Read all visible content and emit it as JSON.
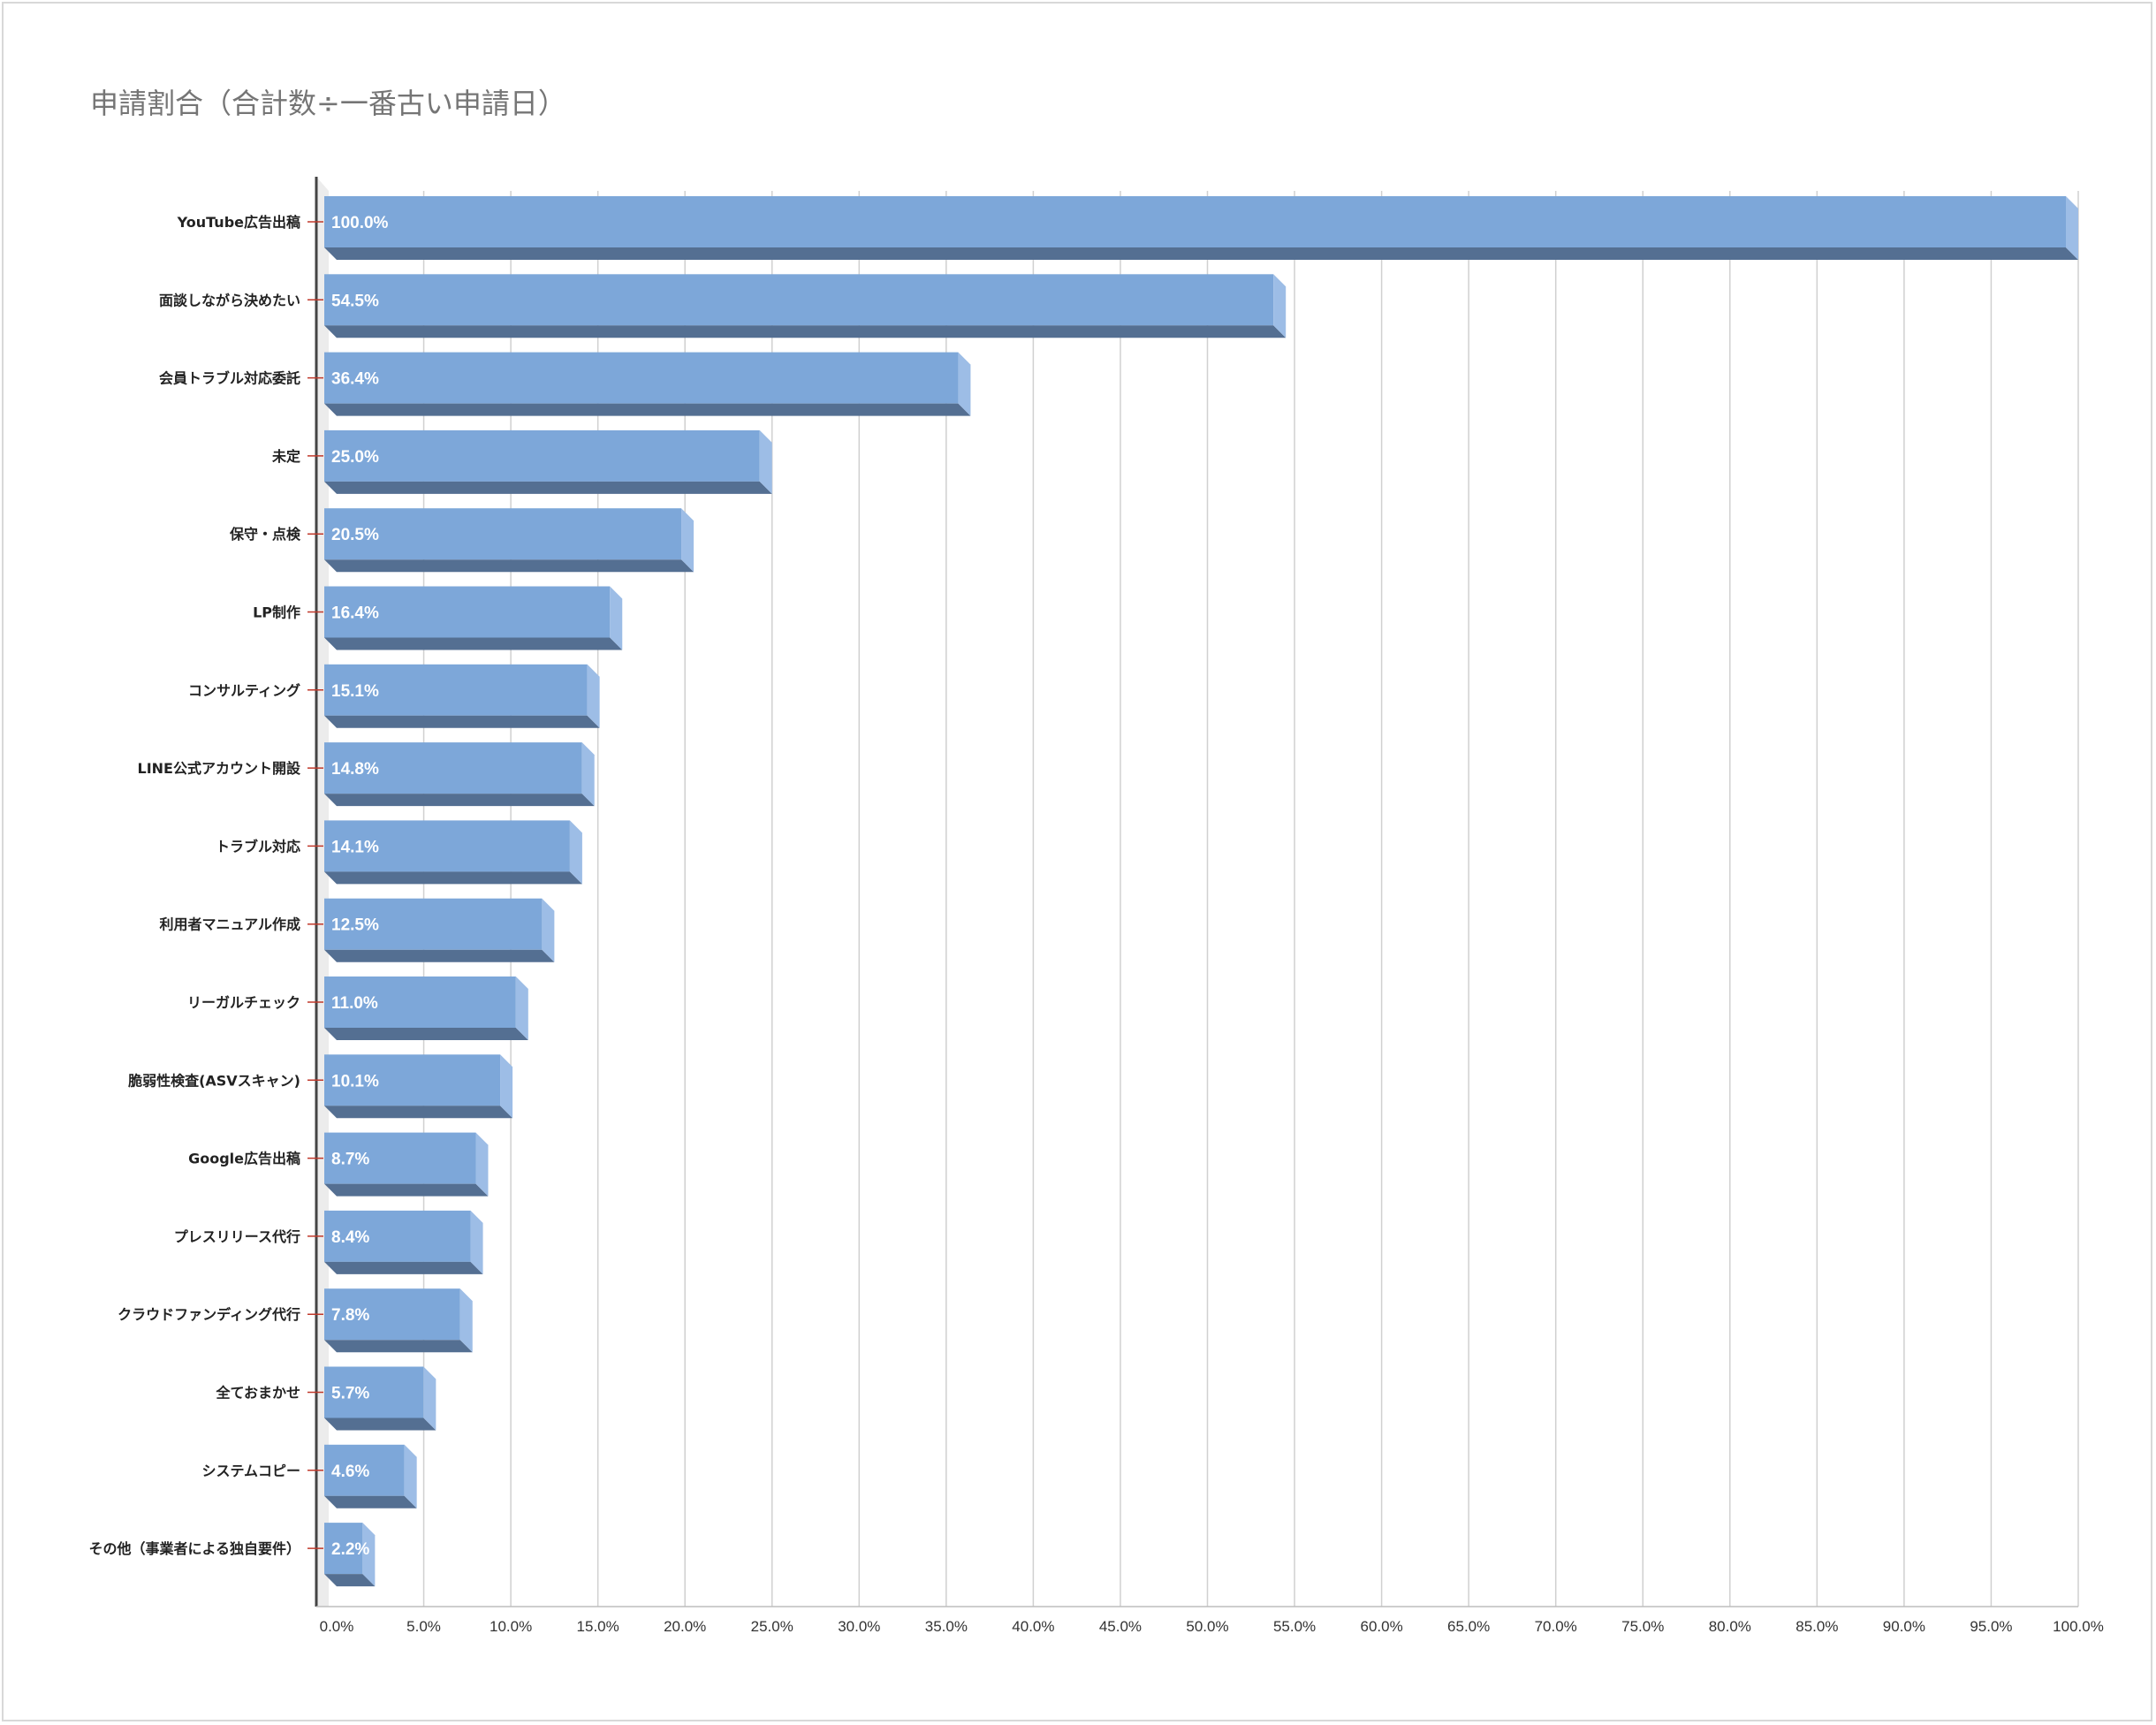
{
  "chart_data": {
    "type": "bar",
    "orientation": "horizontal",
    "title": "申請割合（合計数÷一番古い申請日）",
    "categories": [
      "YouTube広告出稿",
      "面談しながら決めたい",
      "会員トラブル対応委託",
      "未定",
      "保守・点検",
      "LP制作",
      "コンサルティング",
      "LINE公式アカウント開設",
      "トラブル対応",
      "利用者マニュアル作成",
      "リーガルチェック",
      "脆弱性検査(ASVスキャン)",
      "Google広告出稿",
      "プレスリリース代行",
      "クラウドファンディング代行",
      "全ておまかせ",
      "システムコピー",
      "その他（事業者による独自要件）"
    ],
    "values": [
      100.0,
      54.5,
      36.4,
      25.0,
      20.5,
      16.4,
      15.1,
      14.8,
      14.1,
      12.5,
      11.0,
      10.1,
      8.7,
      8.4,
      7.8,
      5.7,
      4.6,
      2.2
    ],
    "value_labels": [
      "100.0%",
      "54.5%",
      "36.4%",
      "25.0%",
      "20.5%",
      "16.4%",
      "15.1%",
      "14.8%",
      "14.1%",
      "12.5%",
      "11.0%",
      "10.1%",
      "8.7%",
      "8.4%",
      "7.8%",
      "5.7%",
      "4.6%",
      "2.2%"
    ],
    "x_ticks": [
      "0.0%",
      "5.0%",
      "10.0%",
      "15.0%",
      "20.0%",
      "25.0%",
      "30.0%",
      "35.0%",
      "40.0%",
      "45.0%",
      "50.0%",
      "55.0%",
      "60.0%",
      "65.0%",
      "70.0%",
      "75.0%",
      "80.0%",
      "85.0%",
      "90.0%",
      "95.0%",
      "100.0%"
    ],
    "xlim": [
      0,
      100
    ],
    "grid": "vertical",
    "style": "3d",
    "colors": {
      "bar_front": "#7da7d9",
      "bar_bottom": "#546f92",
      "bar_side": "#9dbde6",
      "grid": "#d0d0d0",
      "axis": "#444444",
      "tick_mark": "#c0392b",
      "title": "#757575"
    }
  }
}
